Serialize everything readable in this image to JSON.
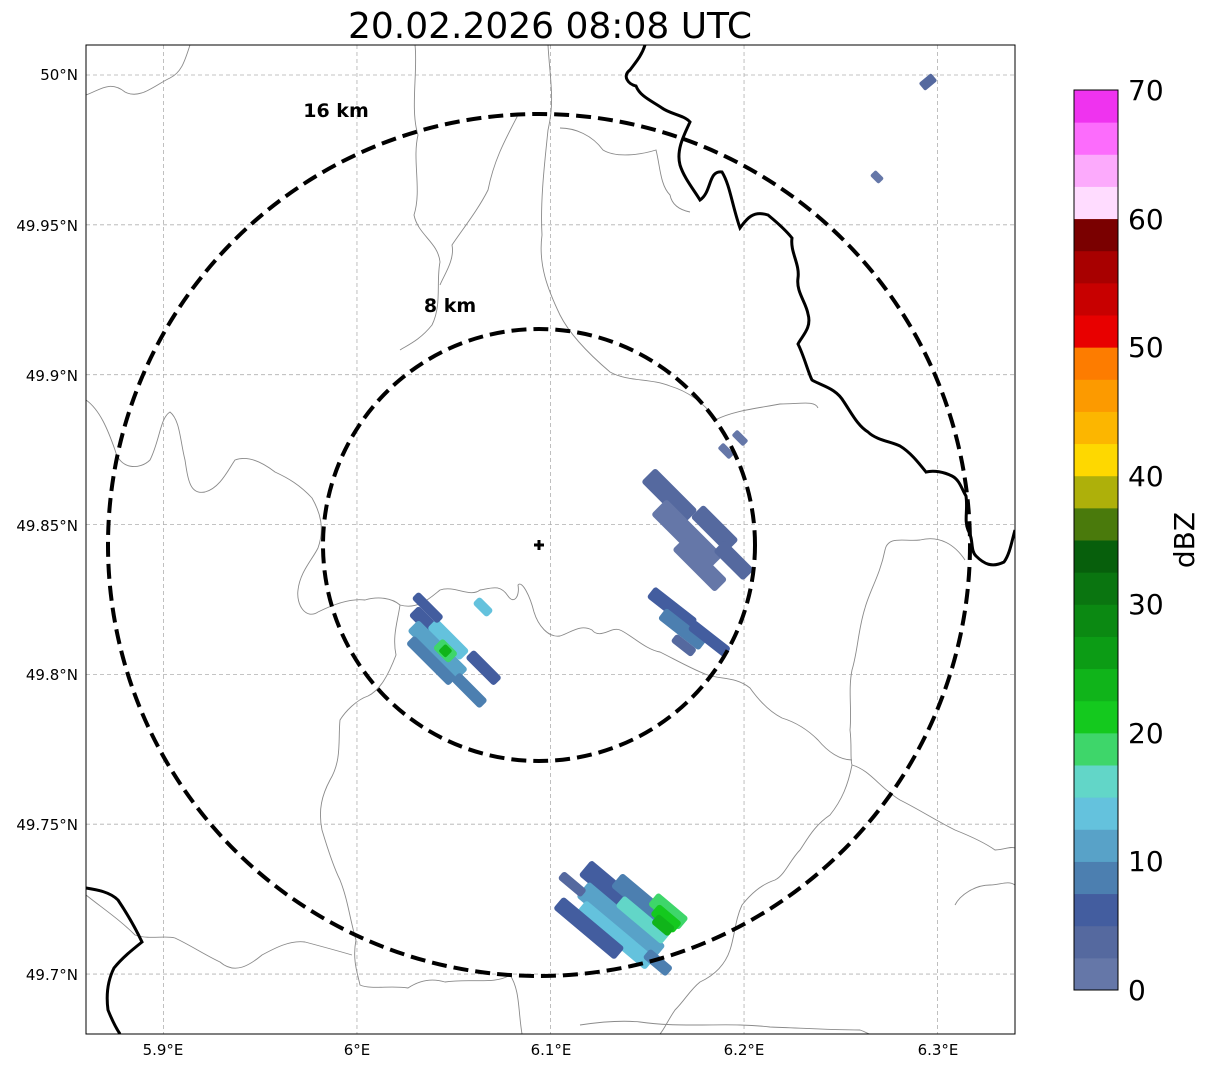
{
  "map": {
    "title": "20.02.2026 08:08 UTC",
    "x_ticks": [
      "5.9°E",
      "6°E",
      "6.1°E",
      "6.2°E",
      "6.3°E"
    ],
    "y_ticks": [
      "50°N",
      "49.95°N",
      "49.9°N",
      "49.85°N",
      "49.8°N",
      "49.75°N",
      "49.7°N"
    ],
    "lon_range": [
      5.86,
      6.34
    ],
    "lat_range": [
      49.68,
      50.01
    ],
    "radar_center": {
      "lon": 6.095,
      "lat": 49.843
    },
    "rings": [
      {
        "label": "8 km",
        "radius_km": 8
      },
      {
        "label": "16 km",
        "radius_km": 16
      }
    ],
    "gridlines": true
  },
  "colorbar": {
    "label": "dBZ",
    "ticks": [
      "0",
      "10",
      "20",
      "30",
      "40",
      "50",
      "60",
      "70"
    ],
    "range": [
      0,
      70
    ],
    "step": 2.5,
    "colors": [
      "#6577a8",
      "#55699f",
      "#435d9f",
      "#4c7fb0",
      "#58a2c8",
      "#64c2dd",
      "#62d6c8",
      "#3ed66a",
      "#14c91e",
      "#10b41a",
      "#0c9c15",
      "#0b8912",
      "#0a7510",
      "#075f0c",
      "#4a7a0c",
      "#aeb00a",
      "#fed800",
      "#fcb600",
      "#fc9a00",
      "#fd7c00",
      "#e80000",
      "#c80000",
      "#a80000",
      "#7a0000",
      "#ffdcff",
      "#fcaafc",
      "#fc6cfc",
      "#ef33ef"
    ]
  },
  "echoes": [
    {
      "name": "echo-southwest",
      "lon": 6.045,
      "lat": 49.813,
      "dbz": 22
    },
    {
      "name": "echo-east",
      "lon": 6.17,
      "lat": 49.845,
      "dbz": 2
    },
    {
      "name": "echo-east-small",
      "lon": 6.174,
      "lat": 49.817,
      "dbz": 5
    },
    {
      "name": "echo-south",
      "lon": 6.135,
      "lat": 49.72,
      "dbz": 25
    },
    {
      "name": "echo-northeast-1",
      "lon": 6.295,
      "lat": 49.997,
      "dbz": 3
    },
    {
      "name": "echo-northeast-2",
      "lon": 6.268,
      "lat": 49.966,
      "dbz": 2
    },
    {
      "name": "echo-northeast-3",
      "lon": 6.193,
      "lat": 49.878,
      "dbz": 2
    }
  ]
}
